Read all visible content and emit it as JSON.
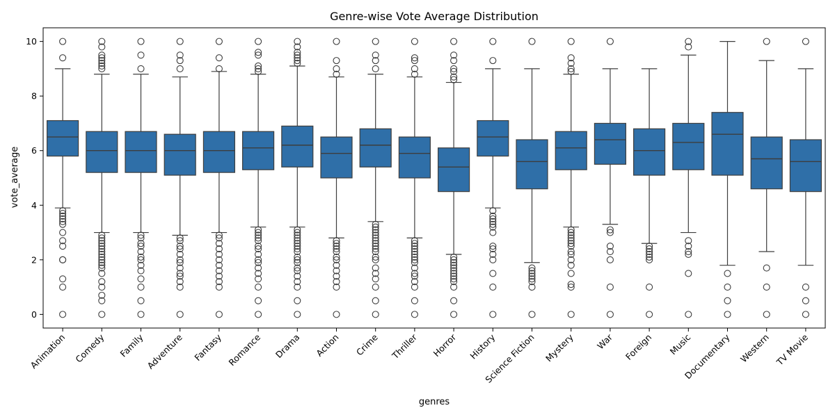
{
  "chart_data": {
    "type": "box",
    "title": "Genre-wise Vote Average Distribution",
    "xlabel": "genres",
    "ylabel": "vote_average",
    "ylim": [
      -0.5,
      10.5
    ],
    "yticks": [
      0,
      2,
      4,
      6,
      8,
      10
    ],
    "grid": false,
    "box_color": "#2f6fa8",
    "line_color": "#3d3d3d",
    "categories": [
      "Animation",
      "Comedy",
      "Family",
      "Adventure",
      "Fantasy",
      "Romance",
      "Drama",
      "Action",
      "Crime",
      "Thriller",
      "Horror",
      "History",
      "Science Fiction",
      "Mystery",
      "War",
      "Foreign",
      "Music",
      "Documentary",
      "Western",
      "TV Movie"
    ],
    "boxes": [
      {
        "genre": "Animation",
        "q1": 5.8,
        "median": 6.5,
        "q3": 7.1,
        "whisker_low": 3.9,
        "whisker_high": 9.0,
        "outliers": [
          0,
          1.0,
          1.3,
          2.0,
          2.0,
          2.5,
          2.7,
          3.0,
          3.3,
          3.4,
          3.5,
          3.6,
          3.7,
          3.8,
          9.4,
          10.0
        ]
      },
      {
        "genre": "Comedy",
        "q1": 5.2,
        "median": 6.0,
        "q3": 6.7,
        "whisker_low": 3.0,
        "whisker_high": 8.8,
        "outliers": [
          0,
          0.5,
          0.7,
          1.0,
          1.2,
          1.5,
          1.7,
          1.8,
          1.9,
          2.0,
          2.1,
          2.2,
          2.3,
          2.4,
          2.5,
          2.6,
          2.7,
          2.8,
          2.9,
          9.0,
          9.1,
          9.2,
          9.3,
          9.4,
          9.5,
          9.8,
          10.0
        ]
      },
      {
        "genre": "Family",
        "q1": 5.2,
        "median": 6.0,
        "q3": 6.7,
        "whisker_low": 3.0,
        "whisker_high": 8.8,
        "outliers": [
          0,
          0.5,
          1.0,
          1.3,
          1.6,
          1.8,
          2.0,
          2.1,
          2.3,
          2.5,
          2.6,
          2.8,
          2.9,
          9.0,
          9.5,
          10.0
        ]
      },
      {
        "genre": "Adventure",
        "q1": 5.1,
        "median": 6.0,
        "q3": 6.6,
        "whisker_low": 2.9,
        "whisker_high": 8.7,
        "outliers": [
          0,
          1.0,
          1.2,
          1.4,
          1.5,
          1.7,
          1.9,
          2.0,
          2.2,
          2.4,
          2.5,
          2.7,
          2.8,
          9.0,
          9.3,
          9.5,
          10.0
        ]
      },
      {
        "genre": "Fantasy",
        "q1": 5.2,
        "median": 6.0,
        "q3": 6.7,
        "whisker_low": 3.0,
        "whisker_high": 8.9,
        "outliers": [
          0,
          1.0,
          1.2,
          1.4,
          1.6,
          1.8,
          2.0,
          2.2,
          2.4,
          2.6,
          2.8,
          2.9,
          9.0,
          9.4,
          10.0
        ]
      },
      {
        "genre": "Romance",
        "q1": 5.3,
        "median": 6.1,
        "q3": 6.7,
        "whisker_low": 3.2,
        "whisker_high": 8.8,
        "outliers": [
          0,
          0.5,
          1.0,
          1.3,
          1.5,
          1.7,
          1.9,
          2.0,
          2.2,
          2.4,
          2.5,
          2.7,
          2.8,
          2.9,
          3.0,
          3.1,
          8.9,
          9.0,
          9.1,
          9.5,
          9.6,
          10.0
        ]
      },
      {
        "genre": "Drama",
        "q1": 5.4,
        "median": 6.2,
        "q3": 6.9,
        "whisker_low": 3.2,
        "whisker_high": 9.1,
        "outliers": [
          0,
          0.5,
          1.0,
          1.2,
          1.4,
          1.6,
          1.7,
          1.9,
          2.0,
          2.1,
          2.3,
          2.4,
          2.5,
          2.6,
          2.7,
          2.8,
          2.9,
          3.0,
          3.1,
          9.2,
          9.3,
          9.4,
          9.5,
          9.6,
          9.8,
          10.0
        ]
      },
      {
        "genre": "Action",
        "q1": 5.0,
        "median": 5.9,
        "q3": 6.5,
        "whisker_low": 2.8,
        "whisker_high": 8.7,
        "outliers": [
          0,
          1.0,
          1.2,
          1.4,
          1.6,
          1.8,
          2.0,
          2.1,
          2.3,
          2.4,
          2.5,
          2.6,
          2.7,
          8.8,
          9.0,
          9.3,
          10.0
        ]
      },
      {
        "genre": "Crime",
        "q1": 5.4,
        "median": 6.2,
        "q3": 6.8,
        "whisker_low": 3.4,
        "whisker_high": 8.8,
        "outliers": [
          0,
          0.5,
          1.0,
          1.3,
          1.5,
          1.7,
          2.0,
          2.1,
          2.3,
          2.4,
          2.5,
          2.6,
          2.7,
          2.8,
          2.9,
          3.0,
          3.1,
          3.2,
          3.3,
          9.0,
          9.3,
          9.5,
          10.0
        ]
      },
      {
        "genre": "Thriller",
        "q1": 5.0,
        "median": 5.9,
        "q3": 6.5,
        "whisker_low": 2.8,
        "whisker_high": 8.7,
        "outliers": [
          0,
          0.5,
          1.0,
          1.2,
          1.4,
          1.5,
          1.7,
          1.9,
          2.0,
          2.1,
          2.2,
          2.3,
          2.4,
          2.5,
          2.6,
          2.7,
          8.8,
          9.0,
          9.3,
          9.4,
          10.0
        ]
      },
      {
        "genre": "Horror",
        "q1": 4.5,
        "median": 5.4,
        "q3": 6.1,
        "whisker_low": 2.2,
        "whisker_high": 8.5,
        "outliers": [
          0,
          0.5,
          1.0,
          1.2,
          1.3,
          1.4,
          1.5,
          1.6,
          1.7,
          1.8,
          1.9,
          2.0,
          2.1,
          8.6,
          8.7,
          8.9,
          9.0,
          9.3,
          9.5,
          10.0
        ]
      },
      {
        "genre": "History",
        "q1": 5.8,
        "median": 6.5,
        "q3": 7.1,
        "whisker_low": 3.9,
        "whisker_high": 9.0,
        "outliers": [
          0,
          1.0,
          1.5,
          2.0,
          2.2,
          2.4,
          2.5,
          3.0,
          3.2,
          3.3,
          3.4,
          3.5,
          3.6,
          3.8,
          9.3,
          10.0
        ]
      },
      {
        "genre": "Science Fiction",
        "q1": 4.6,
        "median": 5.6,
        "q3": 6.4,
        "whisker_low": 1.9,
        "whisker_high": 9.0,
        "outliers": [
          0,
          1.0,
          1.2,
          1.3,
          1.4,
          1.5,
          1.6,
          1.7,
          10.0
        ]
      },
      {
        "genre": "Mystery",
        "q1": 5.3,
        "median": 6.1,
        "q3": 6.7,
        "whisker_low": 3.2,
        "whisker_high": 8.8,
        "outliers": [
          0,
          1.0,
          1.1,
          1.5,
          1.8,
          2.0,
          2.2,
          2.3,
          2.5,
          2.6,
          2.7,
          2.8,
          2.9,
          3.0,
          3.1,
          8.9,
          9.0,
          9.2,
          9.4,
          10.0
        ]
      },
      {
        "genre": "War",
        "q1": 5.5,
        "median": 6.4,
        "q3": 7.0,
        "whisker_low": 3.3,
        "whisker_high": 9.0,
        "outliers": [
          0,
          1.0,
          2.0,
          2.3,
          2.5,
          3.0,
          3.1,
          10.0
        ]
      },
      {
        "genre": "Foreign",
        "q1": 5.1,
        "median": 6.0,
        "q3": 6.8,
        "whisker_low": 2.6,
        "whisker_high": 9.0,
        "outliers": [
          0,
          1.0,
          2.0,
          2.1,
          2.2,
          2.3,
          2.4,
          2.5
        ]
      },
      {
        "genre": "Music",
        "q1": 5.3,
        "median": 6.3,
        "q3": 7.0,
        "whisker_low": 3.0,
        "whisker_high": 9.5,
        "outliers": [
          0,
          1.5,
          2.2,
          2.3,
          2.5,
          2.7,
          9.8,
          10.0
        ]
      },
      {
        "genre": "Documentary",
        "q1": 5.1,
        "median": 6.6,
        "q3": 7.4,
        "whisker_low": 1.8,
        "whisker_high": 10.0,
        "outliers": [
          0,
          0.5,
          1.0,
          1.5
        ]
      },
      {
        "genre": "Western",
        "q1": 4.6,
        "median": 5.7,
        "q3": 6.5,
        "whisker_low": 2.3,
        "whisker_high": 9.3,
        "outliers": [
          0,
          1.0,
          1.7,
          10.0
        ]
      },
      {
        "genre": "TV Movie",
        "q1": 4.5,
        "median": 5.6,
        "q3": 6.4,
        "whisker_low": 1.8,
        "whisker_high": 9.0,
        "outliers": [
          0,
          0.5,
          1.0,
          10.0
        ]
      }
    ]
  }
}
